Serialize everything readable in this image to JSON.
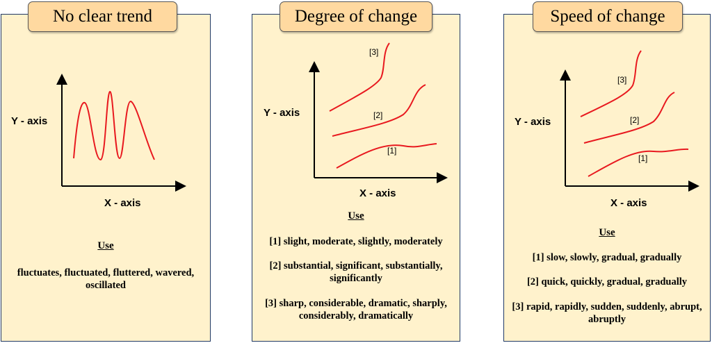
{
  "panels": [
    {
      "title": "No clear trend",
      "y_axis": "Y - axis",
      "x_axis": "X - axis",
      "use_heading": "Use",
      "usage": [
        "fluctuates, fluctuated, fluttered, wavered, oscillated"
      ]
    },
    {
      "title": "Degree of change",
      "y_axis": "Y - axis",
      "x_axis": "X - axis",
      "curve_labels": [
        "[1]",
        "[2]",
        "[3]"
      ],
      "use_heading": "Use",
      "usage": [
        "[1] slight, moderate, slightly, moderately",
        "[2] substantial, significant, substantially, significantly",
        "[3] sharp, considerable, dramatic, sharply, considerably, dramatically"
      ]
    },
    {
      "title": "Speed of change",
      "y_axis": "Y - axis",
      "x_axis": "X - axis",
      "curve_labels": [
        "[1]",
        "[2]",
        "[3]"
      ],
      "use_heading": "Use",
      "usage": [
        "[1] slow, slowly, gradual, gradually",
        "[2] quick, quickly, gradual, gradually",
        "[3] rapid, rapidly, sudden, suddenly, abrupt, abruptly"
      ]
    }
  ],
  "colors": {
    "panel_bg": "#fff2cc",
    "tab_bg": "#ffd9a0",
    "curve": "#e8191f",
    "border": "#1f3864"
  }
}
